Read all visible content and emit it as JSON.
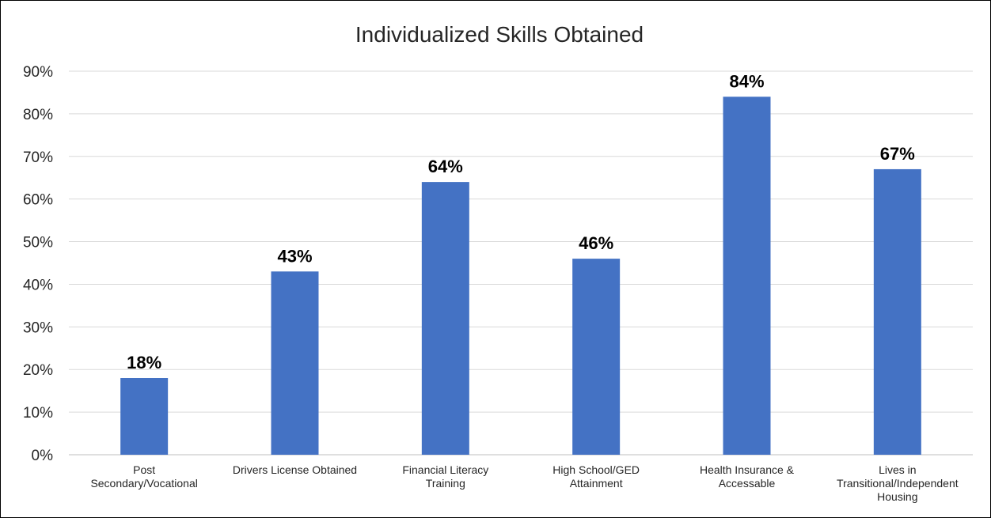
{
  "chart_data": {
    "type": "bar",
    "title": "Individualized Skills Obtained",
    "xlabel": "",
    "ylabel": "",
    "categories": [
      [
        "Post",
        "Secondary/Vocational"
      ],
      [
        "Drivers License Obtained"
      ],
      [
        "Financial Literacy",
        "Training"
      ],
      [
        "High School/GED",
        "Attainment"
      ],
      [
        "Health Insurance &",
        "Accessable"
      ],
      [
        "Lives in",
        "Transitional/Independent",
        "Housing"
      ]
    ],
    "values": [
      18,
      43,
      64,
      46,
      84,
      67
    ],
    "data_labels": [
      "18%",
      "43%",
      "64%",
      "46%",
      "84%",
      "67%"
    ],
    "ylim": [
      0,
      90
    ],
    "yticks": [
      0,
      10,
      20,
      30,
      40,
      50,
      60,
      70,
      80,
      90
    ],
    "ytick_labels": [
      "0%",
      "10%",
      "20%",
      "30%",
      "40%",
      "50%",
      "60%",
      "70%",
      "80%",
      "90%"
    ],
    "grid": true,
    "legend": "none",
    "bar_color": "#4472C4",
    "grid_color": "#D9D9D9"
  }
}
